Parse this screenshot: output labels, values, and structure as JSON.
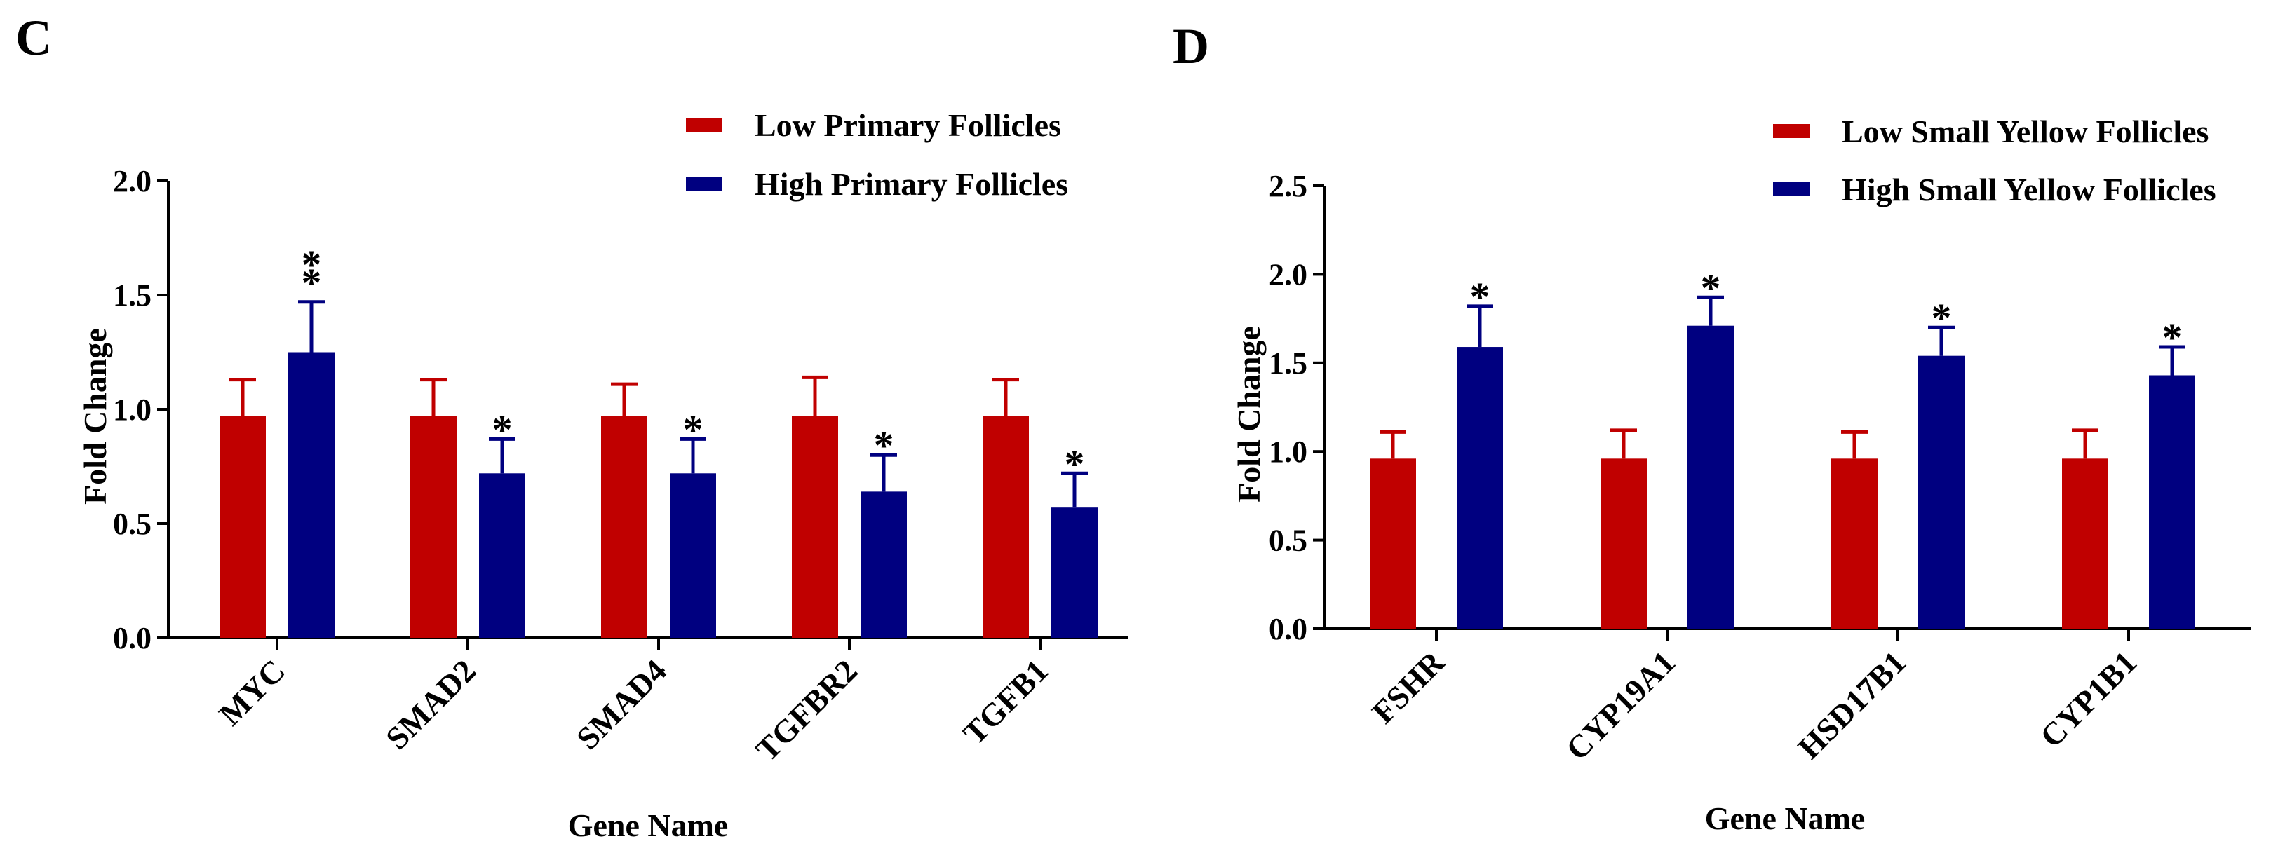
{
  "chart_data": [
    {
      "type": "bar",
      "panel": "C",
      "xlabel": "Gene Name",
      "ylabel": "Fold Change",
      "ylim": [
        0,
        2.0
      ],
      "yticks": [
        "0.0",
        "0.5",
        "1.0",
        "1.5",
        "2.0"
      ],
      "legend_position": "top-right",
      "categories": [
        "MYC",
        "SMAD2",
        "SMAD4",
        "TGFBR2",
        "TGFB1"
      ],
      "series": [
        {
          "name": "Low Primary Follicles",
          "color": "#c00000",
          "values": [
            0.97,
            0.97,
            0.97,
            0.97,
            0.97
          ],
          "errors": [
            0.16,
            0.16,
            0.14,
            0.17,
            0.16
          ],
          "marks": [
            "",
            "",
            "",
            "",
            ""
          ]
        },
        {
          "name": "High Primary Follicles",
          "color": "#000080",
          "values": [
            1.25,
            0.72,
            0.72,
            0.64,
            0.57
          ],
          "errors": [
            0.22,
            0.15,
            0.15,
            0.16,
            0.15
          ],
          "marks": [
            "**",
            "*",
            "*",
            "*",
            "*"
          ]
        }
      ]
    },
    {
      "type": "bar",
      "panel": "D",
      "xlabel": "Gene Name",
      "ylabel": "Fold Change",
      "ylim": [
        0,
        2.5
      ],
      "yticks": [
        "0.0",
        "0.5",
        "1.0",
        "1.5",
        "2.0",
        "2.5"
      ],
      "legend_position": "top-right",
      "categories": [
        "FSHR",
        "CYP19A1",
        "HSD17B1",
        "CYP1B1"
      ],
      "series": [
        {
          "name": "Low Small Yellow Follicles",
          "color": "#c00000",
          "values": [
            0.96,
            0.96,
            0.96,
            0.96
          ],
          "errors": [
            0.15,
            0.16,
            0.15,
            0.16
          ],
          "marks": [
            "",
            "",
            "",
            ""
          ]
        },
        {
          "name": "High Small Yellow Follicles",
          "color": "#000080",
          "values": [
            1.59,
            1.71,
            1.54,
            1.43
          ],
          "errors": [
            0.23,
            0.16,
            0.16,
            0.16
          ],
          "marks": [
            "*",
            "*",
            "*",
            "*"
          ]
        }
      ]
    }
  ]
}
